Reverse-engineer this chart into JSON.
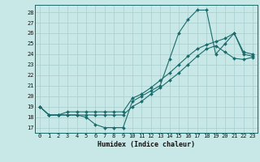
{
  "xlabel": "Humidex (Indice chaleur)",
  "ylabel": "",
  "bg_color": "#c8e8e8",
  "grid_color": "#a8cece",
  "line_color": "#1a6b6b",
  "xlim": [
    -0.5,
    23.5
  ],
  "ylim": [
    16.5,
    28.7
  ],
  "xticks": [
    0,
    1,
    2,
    3,
    4,
    5,
    6,
    7,
    8,
    9,
    10,
    11,
    12,
    13,
    14,
    15,
    16,
    17,
    18,
    19,
    20,
    21,
    22,
    23
  ],
  "yticks": [
    17,
    18,
    19,
    20,
    21,
    22,
    23,
    24,
    25,
    26,
    27,
    28
  ],
  "series": [
    [
      19,
      18.2,
      18.2,
      18.2,
      18.2,
      18.0,
      17.3,
      17.0,
      17.0,
      17.0,
      19.5,
      20.0,
      20.5,
      21.0,
      23.5,
      26.0,
      27.3,
      28.2,
      28.2,
      24.0,
      25.0,
      26.0,
      24.0,
      23.8
    ],
    [
      19,
      18.2,
      18.2,
      18.2,
      18.2,
      18.2,
      18.2,
      18.2,
      18.2,
      18.2,
      19.0,
      19.5,
      20.2,
      20.8,
      21.5,
      22.2,
      23.0,
      23.8,
      24.5,
      24.8,
      24.2,
      23.6,
      23.5,
      23.7
    ],
    [
      19,
      18.2,
      18.2,
      18.5,
      18.5,
      18.5,
      18.5,
      18.5,
      18.5,
      18.5,
      19.8,
      20.2,
      20.8,
      21.5,
      22.2,
      23.0,
      23.8,
      24.5,
      24.9,
      25.2,
      25.5,
      26.0,
      24.2,
      24.0
    ]
  ]
}
